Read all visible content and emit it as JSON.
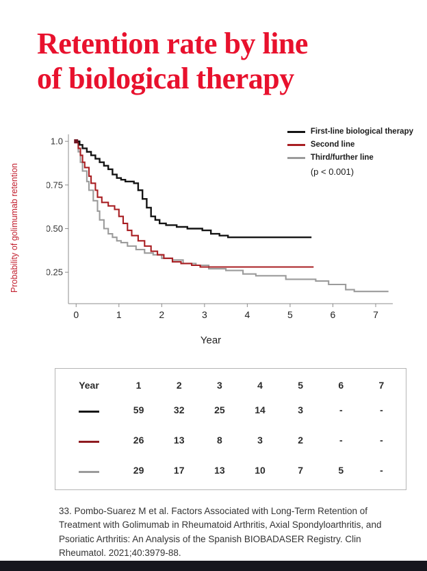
{
  "page": {
    "title_line1": "Retention rate by line",
    "title_line2": "of biological therapy",
    "title_color": "#e8112d",
    "footer_color": "#16161e"
  },
  "chart_data": {
    "type": "line",
    "subtype": "kaplan-meier-step",
    "title": "",
    "xlabel": "Year",
    "ylabel": "Probability of golimumab retention",
    "ylabel_color": "#c2202f",
    "xlim": [
      -0.18,
      7.4
    ],
    "ylim": [
      0.07,
      1.04
    ],
    "xticks": [
      0,
      1,
      2,
      3,
      4,
      5,
      6,
      7
    ],
    "yticks": [
      1.0,
      0.75,
      0.5,
      0.25
    ],
    "ytick_labels": [
      "1.0",
      "0.75",
      "0.50",
      "0.25"
    ],
    "grid": false,
    "legend_position": "top-right",
    "annotation": "(p < 0.001)",
    "axis_color": "#8c8c8c",
    "series": [
      {
        "name": "First-line biological therapy",
        "color": "#141414",
        "points": [
          [
            0,
            1.0
          ],
          [
            0.08,
            0.98
          ],
          [
            0.15,
            0.96
          ],
          [
            0.25,
            0.94
          ],
          [
            0.35,
            0.92
          ],
          [
            0.45,
            0.9
          ],
          [
            0.55,
            0.88
          ],
          [
            0.65,
            0.86
          ],
          [
            0.75,
            0.84
          ],
          [
            0.85,
            0.81
          ],
          [
            0.95,
            0.79
          ],
          [
            1.05,
            0.78
          ],
          [
            1.15,
            0.77
          ],
          [
            1.35,
            0.76
          ],
          [
            1.45,
            0.72
          ],
          [
            1.55,
            0.67
          ],
          [
            1.65,
            0.62
          ],
          [
            1.75,
            0.57
          ],
          [
            1.85,
            0.55
          ],
          [
            1.95,
            0.53
          ],
          [
            2.1,
            0.52
          ],
          [
            2.35,
            0.51
          ],
          [
            2.6,
            0.5
          ],
          [
            2.95,
            0.49
          ],
          [
            3.15,
            0.47
          ],
          [
            3.35,
            0.46
          ],
          [
            3.55,
            0.45
          ],
          [
            5.5,
            0.45
          ]
        ]
      },
      {
        "name": "Second line",
        "color": "#a81e22",
        "points": [
          [
            0,
            1.0
          ],
          [
            0.05,
            0.96
          ],
          [
            0.1,
            0.92
          ],
          [
            0.15,
            0.88
          ],
          [
            0.2,
            0.85
          ],
          [
            0.3,
            0.8
          ],
          [
            0.35,
            0.76
          ],
          [
            0.45,
            0.72
          ],
          [
            0.5,
            0.68
          ],
          [
            0.6,
            0.65
          ],
          [
            0.75,
            0.63
          ],
          [
            0.9,
            0.61
          ],
          [
            1.0,
            0.57
          ],
          [
            1.1,
            0.53
          ],
          [
            1.2,
            0.49
          ],
          [
            1.3,
            0.46
          ],
          [
            1.45,
            0.43
          ],
          [
            1.6,
            0.4
          ],
          [
            1.75,
            0.37
          ],
          [
            1.9,
            0.35
          ],
          [
            2.05,
            0.33
          ],
          [
            2.25,
            0.31
          ],
          [
            2.45,
            0.3
          ],
          [
            2.7,
            0.29
          ],
          [
            2.9,
            0.28
          ],
          [
            5.55,
            0.28
          ]
        ]
      },
      {
        "name": "Third/further line",
        "color": "#9b9b9b",
        "points": [
          [
            0,
            1.0
          ],
          [
            0.05,
            0.94
          ],
          [
            0.1,
            0.88
          ],
          [
            0.15,
            0.83
          ],
          [
            0.25,
            0.77
          ],
          [
            0.3,
            0.72
          ],
          [
            0.4,
            0.66
          ],
          [
            0.5,
            0.6
          ],
          [
            0.55,
            0.55
          ],
          [
            0.65,
            0.5
          ],
          [
            0.75,
            0.47
          ],
          [
            0.85,
            0.45
          ],
          [
            0.95,
            0.43
          ],
          [
            1.05,
            0.42
          ],
          [
            1.2,
            0.4
          ],
          [
            1.4,
            0.38
          ],
          [
            1.6,
            0.36
          ],
          [
            1.8,
            0.35
          ],
          [
            2.0,
            0.33
          ],
          [
            2.25,
            0.32
          ],
          [
            2.5,
            0.3
          ],
          [
            2.8,
            0.29
          ],
          [
            3.1,
            0.27
          ],
          [
            3.5,
            0.26
          ],
          [
            3.9,
            0.24
          ],
          [
            4.2,
            0.23
          ],
          [
            4.9,
            0.21
          ],
          [
            5.6,
            0.2
          ],
          [
            5.9,
            0.18
          ],
          [
            6.3,
            0.15
          ],
          [
            6.5,
            0.14
          ],
          [
            7.3,
            0.14
          ]
        ]
      }
    ]
  },
  "risk_table": {
    "header": [
      "Year",
      "1",
      "2",
      "3",
      "4",
      "5",
      "6",
      "7"
    ],
    "rows": [
      {
        "series": "First-line biological therapy",
        "swatch_color": "#141414",
        "values": [
          "59",
          "32",
          "25",
          "14",
          "3",
          "-",
          "-"
        ]
      },
      {
        "series": "Second line",
        "swatch_color": "#8e1b20",
        "values": [
          "26",
          "13",
          "8",
          "3",
          "2",
          "-",
          "-"
        ]
      },
      {
        "series": "Third/further line",
        "swatch_color": "#9b9b9b",
        "values": [
          "29",
          "17",
          "13",
          "10",
          "7",
          "5",
          "-"
        ]
      }
    ]
  },
  "citation": {
    "text": "33. Pombo-Suarez M et al. Factors Associated with Long-Term Retention of Treatment with Golimumab in Rheumatoid Arthritis, Axial Spondyloarthritis, and Psoriatic Arthritis: An Analysis of the Spanish BIOBADASER Registry. Clin Rheumatol. 2021;40:3979-88."
  }
}
